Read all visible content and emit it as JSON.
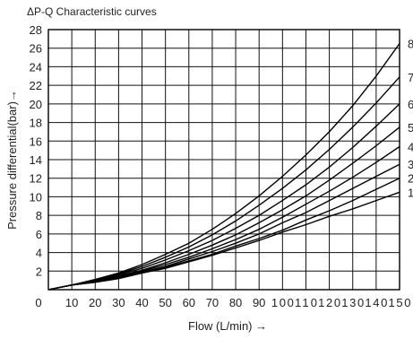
{
  "chart_data": {
    "type": "line",
    "title": "ΔP-Q Characteristic curves",
    "xlabel": "Flow  (L/min) →",
    "ylabel": "Pressure differential(bar)→",
    "xlim": [
      0,
      150
    ],
    "ylim": [
      0,
      28
    ],
    "x_ticks": [
      0,
      10,
      20,
      30,
      40,
      50,
      60,
      70,
      80,
      90,
      100,
      110,
      120,
      130,
      140,
      150
    ],
    "x_tick_labels": [
      "0",
      "10",
      "20",
      "30",
      "40",
      "50",
      "60",
      "70",
      "80",
      "90",
      "100",
      "110",
      "120",
      "130",
      "140",
      "150"
    ],
    "y_ticks": [
      2,
      4,
      6,
      8,
      10,
      12,
      14,
      16,
      18,
      20,
      22,
      24,
      26,
      28
    ],
    "y_tick_labels": [
      "2",
      "4",
      "6",
      "8",
      "10",
      "12",
      "14",
      "16",
      "18",
      "20",
      "22",
      "24",
      "26",
      "28"
    ],
    "grid": true,
    "x": [
      0,
      10,
      20,
      30,
      40,
      50,
      60,
      70,
      80,
      90,
      100,
      110,
      120,
      130,
      140,
      150
    ],
    "series": [
      {
        "name": "1",
        "values": [
          0,
          0.5,
          0.8,
          1.2,
          1.8,
          2.3,
          3.0,
          3.7,
          4.5,
          5.3,
          6.2,
          7.0,
          7.9,
          8.7,
          9.6,
          10.5
        ]
      },
      {
        "name": "2",
        "values": [
          0,
          0.5,
          0.8,
          1.2,
          1.8,
          2.4,
          3.1,
          3.8,
          4.7,
          5.5,
          6.4,
          7.5,
          8.5,
          9.6,
          10.8,
          12.0
        ]
      },
      {
        "name": "3",
        "values": [
          0,
          0.5,
          0.8,
          1.3,
          1.9,
          2.5,
          3.3,
          4.1,
          5.0,
          6.0,
          7.2,
          8.3,
          9.6,
          10.9,
          12.2,
          13.5
        ]
      },
      {
        "name": "4",
        "values": [
          0,
          0.5,
          0.9,
          1.4,
          2.0,
          2.7,
          3.5,
          4.4,
          5.4,
          6.5,
          7.8,
          9.2,
          10.6,
          12.1,
          13.7,
          15.4
        ]
      },
      {
        "name": "5",
        "values": [
          0,
          0.5,
          0.9,
          1.5,
          2.1,
          2.9,
          3.8,
          4.8,
          5.9,
          7.2,
          8.6,
          10.1,
          11.8,
          13.6,
          15.5,
          17.5
        ]
      },
      {
        "name": "6",
        "values": [
          0,
          0.5,
          1.0,
          1.6,
          2.3,
          3.2,
          4.2,
          5.3,
          6.6,
          8.0,
          9.6,
          11.3,
          13.2,
          15.3,
          17.6,
          20.0
        ]
      },
      {
        "name": "7",
        "values": [
          0,
          0.5,
          1.0,
          1.7,
          2.5,
          3.5,
          4.6,
          5.9,
          7.4,
          9.1,
          10.9,
          12.9,
          15.1,
          17.5,
          20.1,
          22.9
        ]
      },
      {
        "name": "8",
        "values": [
          0,
          0.5,
          1.1,
          1.8,
          2.7,
          3.8,
          5.0,
          6.5,
          8.2,
          10.1,
          12.2,
          14.5,
          17.0,
          19.8,
          23.0,
          26.5
        ]
      }
    ]
  }
}
